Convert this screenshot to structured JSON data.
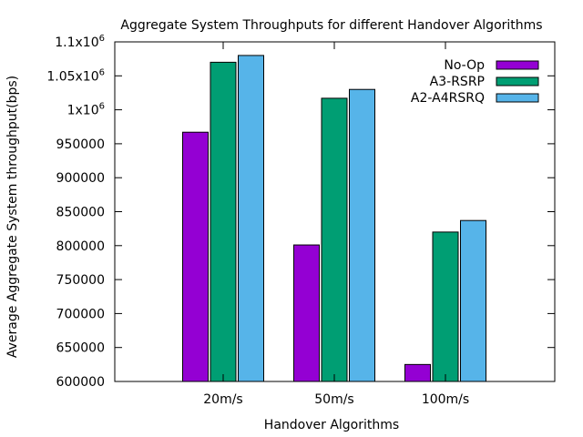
{
  "chart_data": {
    "type": "bar",
    "title": "Aggregate System Throughputs for different Handover Algorithms",
    "xlabel": "Handover Algorithms",
    "ylabel": "Average Aggregate System throughput(bps)",
    "categories": [
      "20m/s",
      "50m/s",
      "100m/s"
    ],
    "series": [
      {
        "name": "No-Op",
        "color": "#9400d3",
        "values": [
          967000,
          801000,
          625000
        ]
      },
      {
        "name": "A3-RSRP",
        "color": "#009e73",
        "values": [
          1070000,
          1017000,
          820000
        ]
      },
      {
        "name": "A2-A4RSRQ",
        "color": "#56b4e9",
        "values": [
          1080000,
          1030000,
          837000
        ]
      }
    ],
    "ylim": [
      600000,
      1100000
    ],
    "yticks": [
      {
        "value": 600000,
        "label": "600000"
      },
      {
        "value": 650000,
        "label": "650000"
      },
      {
        "value": 700000,
        "label": "700000"
      },
      {
        "value": 750000,
        "label": "750000"
      },
      {
        "value": 800000,
        "label": "800000"
      },
      {
        "value": 850000,
        "label": "850000"
      },
      {
        "value": 900000,
        "label": "900000"
      },
      {
        "value": 950000,
        "label": "950000"
      },
      {
        "value": 1000000,
        "label": "1x10",
        "sup": "6"
      },
      {
        "value": 1050000,
        "label": "1.05x10",
        "sup": "6"
      },
      {
        "value": 1100000,
        "label": "1.1x10",
        "sup": "6"
      }
    ],
    "grid": false,
    "legend_position": "top-right"
  }
}
